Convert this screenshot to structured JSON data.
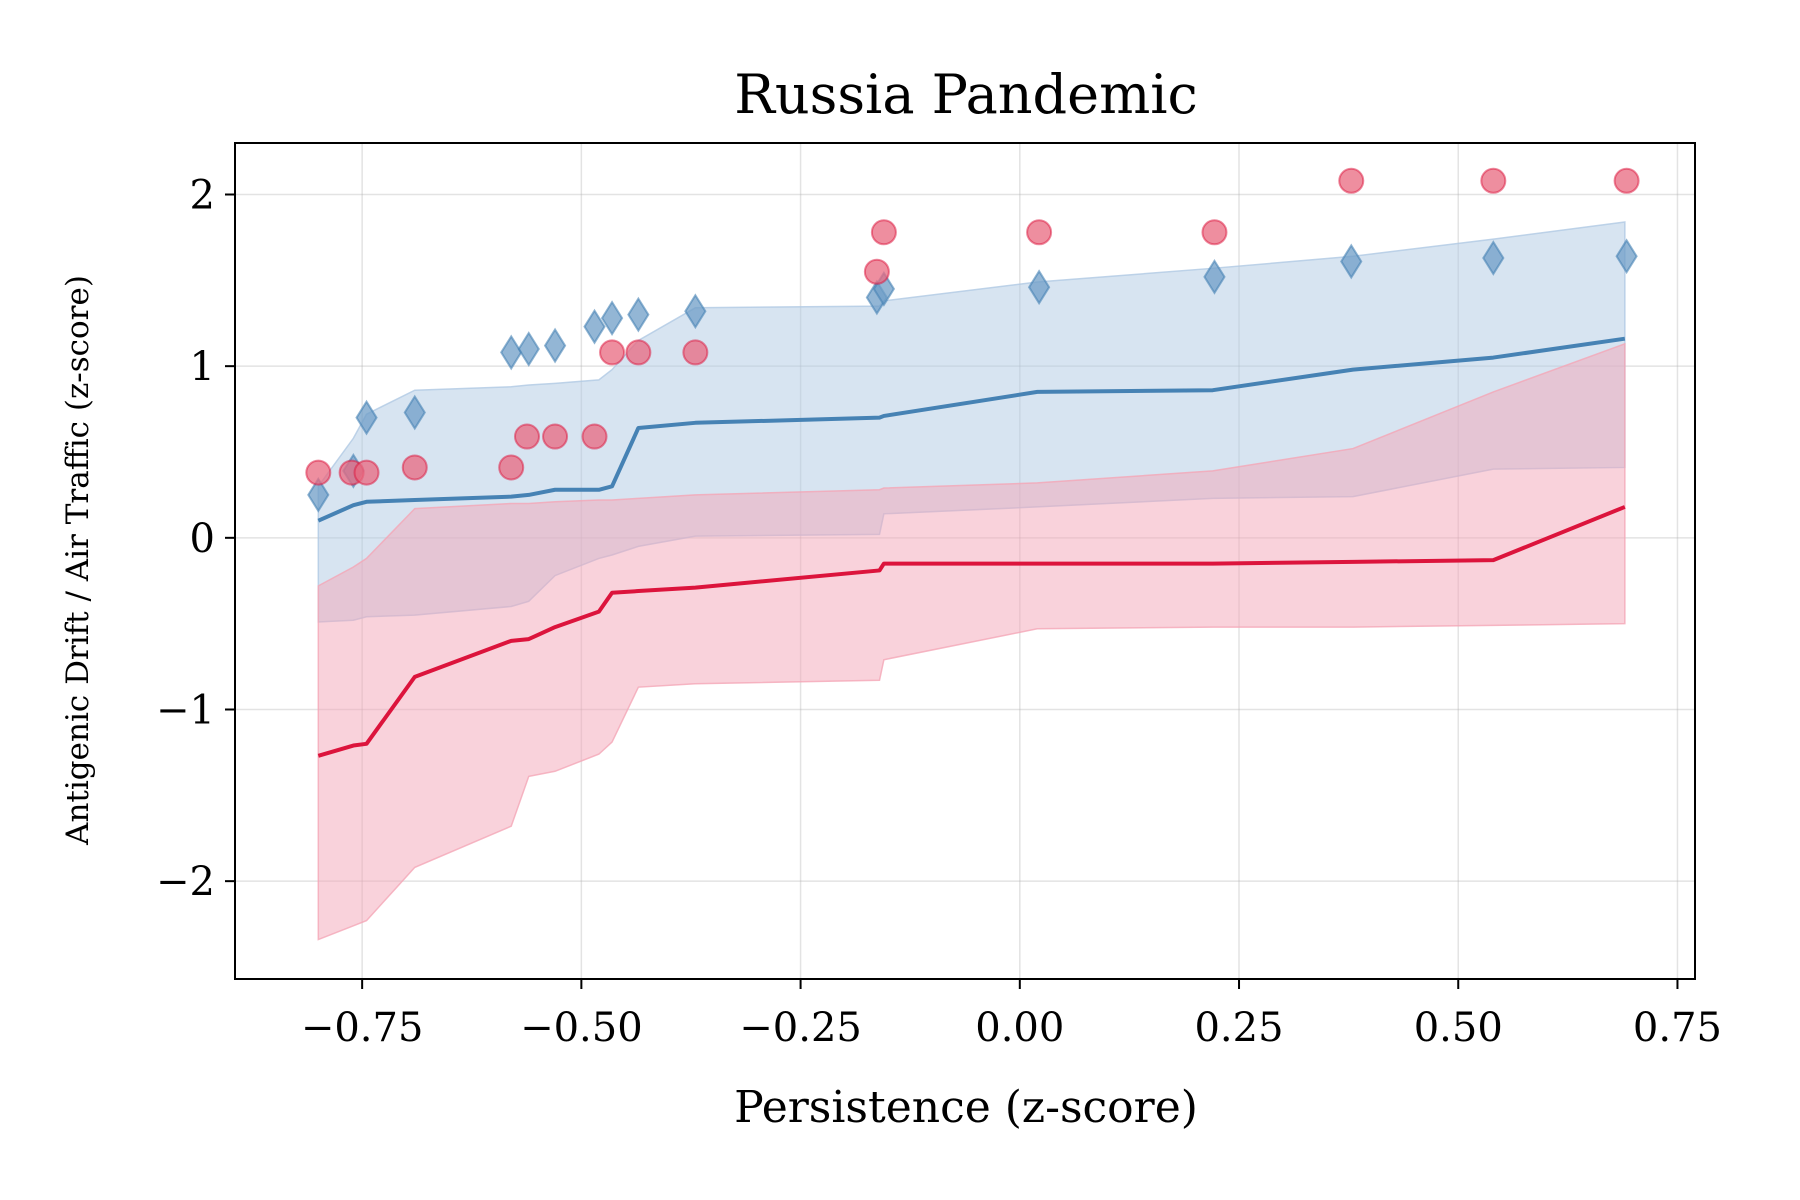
{
  "chart_data": {
    "type": "line",
    "title": "Russia Pandemic",
    "xlabel": "Persistence (z-score)",
    "ylabel": "Antigenic Drift / Air Traffic (z-score)",
    "xlim": [
      -0.895,
      0.77
    ],
    "ylim": [
      -2.57,
      2.3
    ],
    "xticks": [
      -0.75,
      -0.5,
      -0.25,
      0.0,
      0.25,
      0.5,
      0.75
    ],
    "xtick_labels": [
      "−0.75",
      "−0.50",
      "−0.25",
      "0.00",
      "0.25",
      "0.50",
      "0.75"
    ],
    "yticks": [
      -2,
      -1,
      0,
      1,
      2
    ],
    "ytick_labels": [
      "−2",
      "−1",
      "0",
      "1",
      "2"
    ],
    "grid": true,
    "colors": {
      "blue": "#4682b4",
      "red": "#dc143c",
      "blue_fill": "#b0c9e3",
      "red_fill": "#f4a6b7",
      "blue_marker": "#6f9dc7",
      "red_marker": "#e8687f"
    },
    "series": [
      {
        "kind": "band",
        "color_key": "blue_fill",
        "x": [
          -0.8,
          -0.76,
          -0.745,
          -0.69,
          -0.58,
          -0.56,
          -0.53,
          -0.48,
          -0.465,
          -0.435,
          -0.37,
          -0.16,
          -0.155,
          0.02,
          0.22,
          0.38,
          0.54,
          0.69
        ],
        "upper": [
          0.3,
          0.58,
          0.72,
          0.86,
          0.88,
          0.89,
          0.9,
          0.92,
          0.98,
          1.15,
          1.34,
          1.35,
          1.38,
          1.49,
          1.57,
          1.64,
          1.74,
          1.84
        ],
        "lower": [
          -0.49,
          -0.48,
          -0.46,
          -0.45,
          -0.4,
          -0.37,
          -0.22,
          -0.12,
          -0.1,
          -0.05,
          0.01,
          0.02,
          0.14,
          0.18,
          0.23,
          0.24,
          0.4,
          0.41
        ]
      },
      {
        "kind": "band",
        "color_key": "red_fill",
        "x": [
          -0.8,
          -0.76,
          -0.745,
          -0.69,
          -0.58,
          -0.56,
          -0.53,
          -0.48,
          -0.465,
          -0.435,
          -0.37,
          -0.16,
          -0.155,
          0.02,
          0.22,
          0.38,
          0.54,
          0.69
        ],
        "upper": [
          -0.28,
          -0.17,
          -0.12,
          0.17,
          0.2,
          0.2,
          0.21,
          0.22,
          0.22,
          0.23,
          0.25,
          0.28,
          0.29,
          0.32,
          0.39,
          0.52,
          0.85,
          1.13
        ],
        "lower": [
          -2.34,
          -2.26,
          -2.23,
          -1.92,
          -1.68,
          -1.39,
          -1.36,
          -1.26,
          -1.19,
          -0.87,
          -0.85,
          -0.83,
          -0.71,
          -0.53,
          -0.52,
          -0.52,
          -0.51,
          -0.5
        ]
      },
      {
        "kind": "line",
        "color_key": "blue",
        "x": [
          -0.8,
          -0.76,
          -0.745,
          -0.69,
          -0.58,
          -0.56,
          -0.53,
          -0.48,
          -0.465,
          -0.435,
          -0.37,
          -0.16,
          -0.155,
          0.02,
          0.22,
          0.38,
          0.54,
          0.69
        ],
        "y": [
          0.1,
          0.19,
          0.21,
          0.22,
          0.24,
          0.25,
          0.28,
          0.28,
          0.3,
          0.64,
          0.67,
          0.7,
          0.71,
          0.85,
          0.86,
          0.98,
          1.05,
          1.16
        ]
      },
      {
        "kind": "line",
        "color_key": "red",
        "x": [
          -0.8,
          -0.76,
          -0.745,
          -0.69,
          -0.58,
          -0.56,
          -0.53,
          -0.48,
          -0.465,
          -0.435,
          -0.37,
          -0.16,
          -0.155,
          0.02,
          0.22,
          0.38,
          0.54,
          0.69
        ],
        "y": [
          -1.27,
          -1.21,
          -1.2,
          -0.81,
          -0.6,
          -0.59,
          -0.52,
          -0.43,
          -0.32,
          -0.31,
          -0.29,
          -0.19,
          -0.15,
          -0.15,
          -0.15,
          -0.14,
          -0.13,
          0.18
        ]
      },
      {
        "kind": "scatter",
        "marker": "diamond",
        "color_key": "blue_marker",
        "x": [
          -0.8,
          -0.76,
          -0.745,
          -0.69,
          -0.58,
          -0.56,
          -0.53,
          -0.485,
          -0.465,
          -0.435,
          -0.37,
          -0.163,
          -0.155,
          0.022,
          0.222,
          0.378,
          0.54,
          0.692
        ],
        "y": [
          0.25,
          0.39,
          0.7,
          0.73,
          1.08,
          1.1,
          1.12,
          1.23,
          1.28,
          1.3,
          1.32,
          1.4,
          1.45,
          1.46,
          1.52,
          1.61,
          1.63,
          1.64
        ]
      },
      {
        "kind": "scatter",
        "marker": "circle",
        "color_key": "red_marker",
        "x": [
          -0.8,
          -0.762,
          -0.745,
          -0.69,
          -0.58,
          -0.562,
          -0.53,
          -0.485,
          -0.465,
          -0.435,
          -0.37,
          -0.163,
          -0.155,
          0.022,
          0.222,
          0.378,
          0.54,
          0.692
        ],
        "y": [
          0.38,
          0.38,
          0.38,
          0.41,
          0.41,
          0.59,
          0.59,
          0.59,
          1.08,
          1.08,
          1.08,
          1.55,
          1.78,
          1.78,
          1.78,
          2.08,
          2.08,
          2.08
        ]
      }
    ]
  }
}
